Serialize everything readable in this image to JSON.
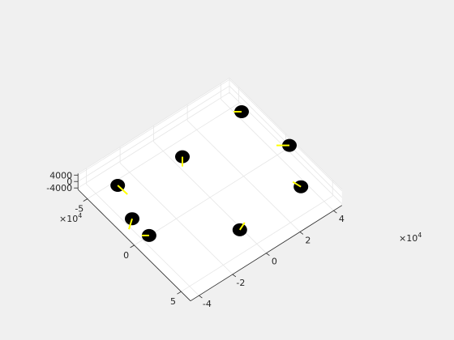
{
  "chart_data": {
    "type": "scatter",
    "view": "3d",
    "grid": true,
    "colors": {
      "figure_background": "#f0f0f0",
      "axes_background": "#ffffff",
      "grid": "#e6e6e6",
      "axis_line": "#262626",
      "disk": "#000000",
      "arrow": "#ffff00"
    },
    "xlim": [
      -60000,
      60000
    ],
    "ylim": [
      -45000,
      45000
    ],
    "zlim": [
      -5000,
      5000
    ],
    "x_ticks": [
      {
        "value": -50000,
        "label": "-5"
      },
      {
        "value": 0,
        "label": "0"
      },
      {
        "value": 50000,
        "label": "5"
      }
    ],
    "y_ticks": [
      {
        "value": -40000,
        "label": "-4"
      },
      {
        "value": -20000,
        "label": "-2"
      },
      {
        "value": 0,
        "label": "0"
      },
      {
        "value": 20000,
        "label": "2"
      },
      {
        "value": 40000,
        "label": "4"
      }
    ],
    "z_ticks": [
      {
        "value": -4000,
        "label": "-4000"
      },
      {
        "value": 0,
        "label": "0"
      },
      {
        "value": 4000,
        "label": "4000"
      }
    ],
    "x_multiplier": {
      "base": "×10",
      "exponent": "4"
    },
    "y_multiplier": {
      "base": "×10",
      "exponent": "4"
    },
    "markers": [
      {
        "x": -41000,
        "y": -32000,
        "z": 0,
        "arrow": [
          12,
          11
        ]
      },
      {
        "x": -33000,
        "y": 2000,
        "z": 0,
        "arrow": [
          0,
          12
        ]
      },
      {
        "x": -38000,
        "y": 40000,
        "z": 0,
        "arrow": [
          -10,
          0
        ]
      },
      {
        "x": 4000,
        "y": 45000,
        "z": 0,
        "arrow": [
          -16,
          0
        ]
      },
      {
        "x": 36000,
        "y": 34000,
        "z": 0,
        "arrow": [
          -10,
          -6
        ]
      },
      {
        "x": 39000,
        "y": -4000,
        "z": 0,
        "arrow": [
          6,
          -9
        ]
      },
      {
        "x": 5000,
        "y": -39000,
        "z": 0,
        "arrow": [
          -9,
          0
        ]
      },
      {
        "x": -13000,
        "y": -39000,
        "z": 0,
        "arrow": [
          -4,
          13
        ]
      }
    ]
  }
}
